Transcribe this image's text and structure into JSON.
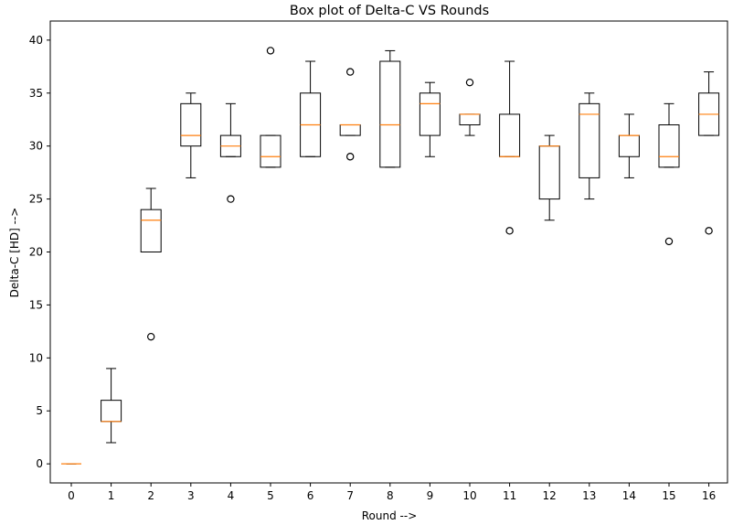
{
  "chart_data": {
    "type": "boxplot",
    "title": "Box plot of Delta-C VS Rounds",
    "xlabel": "Round -->",
    "ylabel": "Delta-C [HD] -->",
    "ylim": [
      -1.8,
      41.8
    ],
    "yticks": [
      0,
      5,
      10,
      15,
      20,
      25,
      30,
      35,
      40
    ],
    "categories": [
      "0",
      "1",
      "2",
      "3",
      "4",
      "5",
      "6",
      "7",
      "8",
      "9",
      "10",
      "11",
      "12",
      "13",
      "14",
      "15",
      "16"
    ],
    "grid": false,
    "colors": {
      "box": "#000000",
      "median": "#ff7f0e",
      "flier": "#000000"
    },
    "boxes": [
      {
        "label": "0",
        "whisker_low": 0,
        "q1": 0,
        "median": 0,
        "q3": 0,
        "whisker_high": 0,
        "fliers": []
      },
      {
        "label": "1",
        "whisker_low": 2,
        "q1": 4,
        "median": 4,
        "q3": 6,
        "whisker_high": 9,
        "fliers": []
      },
      {
        "label": "2",
        "whisker_low": 20,
        "q1": 20,
        "median": 23,
        "q3": 24,
        "whisker_high": 26,
        "fliers": [
          12
        ]
      },
      {
        "label": "3",
        "whisker_low": 27,
        "q1": 30,
        "median": 31,
        "q3": 34,
        "whisker_high": 35,
        "fliers": []
      },
      {
        "label": "4",
        "whisker_low": 29,
        "q1": 29,
        "median": 30,
        "q3": 31,
        "whisker_high": 34,
        "fliers": [
          25
        ]
      },
      {
        "label": "5",
        "whisker_low": 28,
        "q1": 28,
        "median": 29,
        "q3": 31,
        "whisker_high": 31,
        "fliers": [
          39
        ]
      },
      {
        "label": "6",
        "whisker_low": 29,
        "q1": 29,
        "median": 32,
        "q3": 35,
        "whisker_high": 38,
        "fliers": []
      },
      {
        "label": "7",
        "whisker_low": 31,
        "q1": 31,
        "median": 32,
        "q3": 32,
        "whisker_high": 32,
        "fliers": [
          29,
          37
        ]
      },
      {
        "label": "8",
        "whisker_low": 28,
        "q1": 28,
        "median": 32,
        "q3": 38,
        "whisker_high": 39,
        "fliers": []
      },
      {
        "label": "9",
        "whisker_low": 29,
        "q1": 31,
        "median": 34,
        "q3": 35,
        "whisker_high": 36,
        "fliers": []
      },
      {
        "label": "10",
        "whisker_low": 31,
        "q1": 32,
        "median": 33,
        "q3": 33,
        "whisker_high": 33,
        "fliers": [
          36
        ]
      },
      {
        "label": "11",
        "whisker_low": 29,
        "q1": 29,
        "median": 29,
        "q3": 33,
        "whisker_high": 38,
        "fliers": [
          22
        ]
      },
      {
        "label": "12",
        "whisker_low": 23,
        "q1": 25,
        "median": 30,
        "q3": 30,
        "whisker_high": 31,
        "fliers": []
      },
      {
        "label": "13",
        "whisker_low": 25,
        "q1": 27,
        "median": 33,
        "q3": 34,
        "whisker_high": 35,
        "fliers": []
      },
      {
        "label": "14",
        "whisker_low": 27,
        "q1": 29,
        "median": 31,
        "q3": 31,
        "whisker_high": 33,
        "fliers": []
      },
      {
        "label": "15",
        "whisker_low": 28,
        "q1": 28,
        "median": 29,
        "q3": 32,
        "whisker_high": 34,
        "fliers": [
          21
        ]
      },
      {
        "label": "16",
        "whisker_low": 31,
        "q1": 31,
        "median": 33,
        "q3": 35,
        "whisker_high": 37,
        "fliers": [
          22
        ]
      }
    ]
  }
}
